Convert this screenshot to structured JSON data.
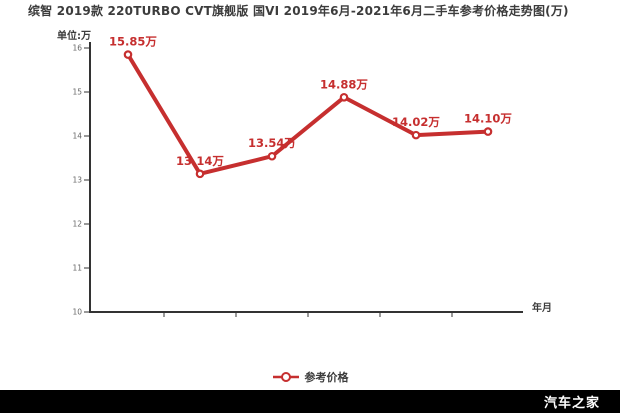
{
  "title": "缤智 2019款 220TURBO CVT旗舰版 国VI 2019年6月-2021年6月二手车参考价格走势图(万)",
  "y_axis": {
    "unit": "单位:万",
    "ticks": [
      16,
      15,
      14,
      13,
      12,
      11,
      10
    ]
  },
  "x_axis": {
    "label": "年月"
  },
  "legend": {
    "label": "参考价格"
  },
  "footer": {
    "brand": "汽车之家"
  },
  "colors": {
    "line": "#c62f2f",
    "point_fill": "#ffffff",
    "point_label": "#c62f2f",
    "axis": "#333333",
    "tick_text": "#666666",
    "title_text": "#3c3c3c",
    "footer_bg": "#000000",
    "footer_text": "#ffffff"
  },
  "chart_data": {
    "type": "line",
    "title": "缤智 2019款 220TURBO CVT旗舰版 国VI 2019年6月-2021年6月二手车参考价格走势图(万)",
    "xlabel": "年月",
    "ylabel": "单位:万",
    "ylim": [
      10,
      16.2
    ],
    "y_ticks": [
      16,
      15,
      14,
      13,
      12,
      11,
      10
    ],
    "grid": false,
    "legend_position": "bottom-center",
    "x_categories_visible": false,
    "series": [
      {
        "name": "参考价格",
        "color": "#c62f2f",
        "values": [
          15.85,
          13.14,
          13.54,
          14.88,
          14.02,
          14.1
        ],
        "point_labels": [
          "15.85万",
          "13.14万",
          "13.54万",
          "14.88万",
          "14.02万",
          "14.10万"
        ]
      }
    ]
  }
}
